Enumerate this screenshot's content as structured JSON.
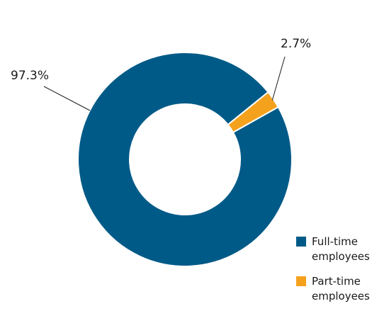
{
  "chart_data": {
    "type": "pie",
    "donut": true,
    "categories": [
      "Full-time employees",
      "Part-time employees"
    ],
    "values": [
      97.3,
      2.7
    ],
    "data_labels": [
      "97.3%",
      "2.7%"
    ],
    "colors": [
      "#005a87",
      "#f4a11d"
    ],
    "legend": {
      "placement": "bottom-right",
      "entries": [
        {
          "lines": [
            "Full-time",
            "employees"
          ],
          "color": "#005a87"
        },
        {
          "lines": [
            "Part-time",
            "employees"
          ],
          "color": "#f4a11d"
        }
      ]
    },
    "title": "",
    "xlabel": "",
    "ylabel": ""
  }
}
